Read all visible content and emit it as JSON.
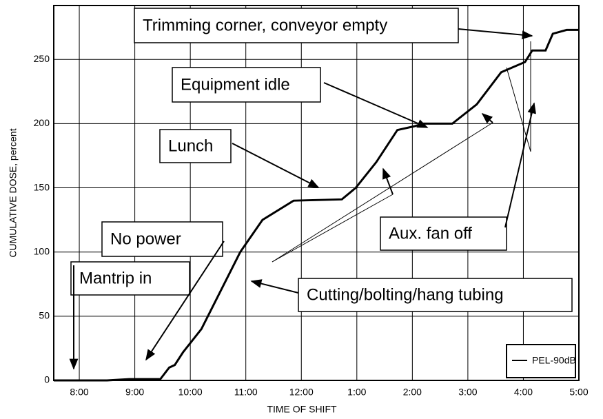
{
  "chart_data": {
    "type": "line",
    "xlabel": "TIME OF SHIFT",
    "ylabel": "CUMULATIVE DOSE, percent",
    "x": [
      7.54,
      8.5,
      8.9,
      9.46,
      9.62,
      9.72,
      9.87,
      10.2,
      10.55,
      10.9,
      11.3,
      11.86,
      12.73,
      12.98,
      13.35,
      13.73,
      14.04,
      14.19,
      14.72,
      15.16,
      15.6,
      16.03,
      16.16,
      16.4,
      16.53,
      16.78,
      17
    ],
    "series": [
      {
        "name": "PEL-90dB",
        "color": "#000000",
        "values": [
          0,
          0,
          1,
          1,
          10,
          12,
          22,
          40,
          70,
          100,
          125,
          140,
          141,
          150,
          170,
          195,
          198,
          200,
          200,
          215,
          240,
          248,
          257,
          257,
          270,
          273,
          273
        ]
      }
    ],
    "xlim": [
      7.54,
      17
    ],
    "xticks": [
      {
        "value": 8,
        "label": "8:00"
      },
      {
        "value": 9,
        "label": "9:00"
      },
      {
        "value": 10,
        "label": "10:00"
      },
      {
        "value": 11,
        "label": "11:00"
      },
      {
        "value": 12,
        "label": "12:00"
      },
      {
        "value": 13,
        "label": "1:00"
      },
      {
        "value": 14,
        "label": "2:00"
      },
      {
        "value": 15,
        "label": "3:00"
      },
      {
        "value": 16,
        "label": "4:00"
      },
      {
        "value": 17,
        "label": "5:00"
      }
    ],
    "ylim": [
      0,
      292
    ],
    "yticks": [
      0,
      50,
      100,
      150,
      200,
      250
    ],
    "grid": true,
    "legend": "lower right",
    "annotations": [
      "Trimming corner, conveyor empty",
      "Equipment idle",
      "Lunch",
      "No power",
      "Mantrip in",
      "Cutting/bolting/hang tubing",
      "Aux. fan off"
    ]
  }
}
